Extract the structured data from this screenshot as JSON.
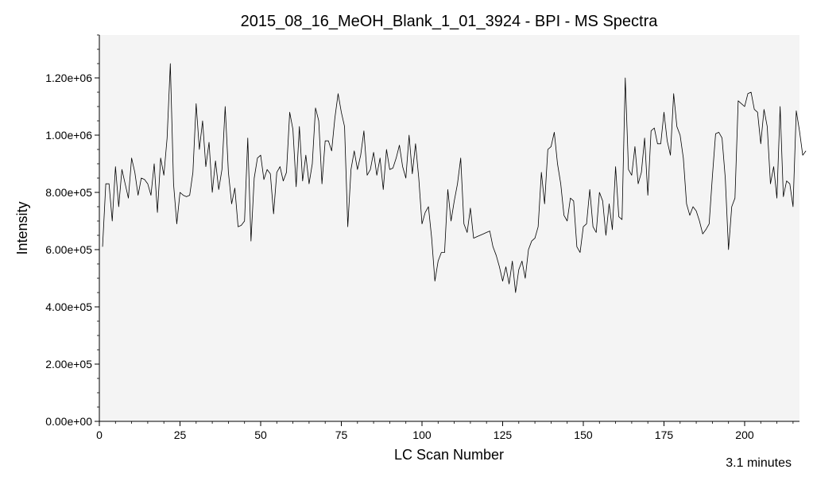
{
  "chart_data": {
    "type": "line",
    "title": "2015_08_16_MeOH_Blank_1_01_3924 - BPI - MS Spectra",
    "xlabel": "LC Scan Number",
    "ylabel": "Intensity",
    "xlim": [
      0,
      217
    ],
    "ylim": [
      0,
      1350000
    ],
    "x_ticks": [
      0,
      25,
      50,
      75,
      100,
      125,
      150,
      175,
      200
    ],
    "x_tick_labels": [
      "0",
      "25",
      "50",
      "75",
      "100",
      "125",
      "150",
      "175",
      "200"
    ],
    "y_ticks": [
      0,
      200000,
      400000,
      600000,
      800000,
      1000000,
      1200000
    ],
    "y_tick_labels": [
      "0.00e+00",
      "2.00e+05",
      "4.00e+05",
      "6.00e+05",
      "8.00e+05",
      "1.00e+06",
      "1.20e+06"
    ],
    "grid": false,
    "line_color": "#000000",
    "plot_background": "#f4f4f4",
    "series": [
      {
        "x_start": 1,
        "x_step": 1,
        "values": [
          610000,
          830000,
          830000,
          700000,
          890000,
          750000,
          880000,
          830000,
          780000,
          920000,
          870000,
          790000,
          850000,
          845000,
          830000,
          790000,
          900000,
          730000,
          920000,
          860000,
          990000,
          1250000,
          830000,
          690000,
          800000,
          790000,
          785000,
          790000,
          870000,
          1110000,
          950000,
          1050000,
          890000,
          975000,
          800000,
          910000,
          810000,
          880000,
          1100000,
          870000,
          760000,
          815000,
          680000,
          685000,
          700000,
          990000,
          630000,
          850000,
          920000,
          930000,
          845000,
          880000,
          865000,
          725000,
          870000,
          890000,
          840000,
          870000,
          1080000,
          1020000,
          820000,
          1030000,
          840000,
          930000,
          830000,
          900000,
          1095000,
          1050000,
          830000,
          980000,
          980000,
          945000,
          1060000,
          1145000,
          1080000,
          1030000,
          680000,
          880000,
          945000,
          880000,
          930000,
          1015000,
          860000,
          880000,
          940000,
          860000,
          920000,
          810000,
          950000,
          880000,
          885000,
          920000,
          965000,
          890000,
          850000,
          1000000,
          865000,
          970000,
          850000,
          690000,
          730000,
          750000,
          640000,
          490000,
          560000,
          590000,
          590000,
          810000,
          700000,
          770000,
          830000,
          920000,
          690000,
          660000,
          745000,
          640000,
          645000,
          650000,
          655000,
          660000,
          665000,
          610000,
          580000,
          540000,
          490000,
          540000,
          480000,
          560000,
          450000,
          530000,
          560000,
          500000,
          600000,
          630000,
          640000,
          680000,
          870000,
          760000,
          950000,
          960000,
          1010000,
          900000,
          830000,
          720000,
          700000,
          780000,
          770000,
          610000,
          590000,
          680000,
          690000,
          810000,
          680000,
          660000,
          800000,
          770000,
          650000,
          760000,
          670000,
          890000,
          715000,
          705000,
          1200000,
          880000,
          860000,
          960000,
          830000,
          870000,
          990000,
          790000,
          1015000,
          1025000,
          970000,
          970000,
          1080000,
          980000,
          930000,
          1145000,
          1030000,
          1000000,
          920000,
          760000,
          720000,
          750000,
          735000,
          700000,
          655000,
          670000,
          690000,
          855000,
          1005000,
          1010000,
          990000,
          850000,
          600000,
          750000,
          780000,
          1120000,
          1110000,
          1100000,
          1145000,
          1150000,
          1090000,
          1080000,
          970000,
          1090000,
          1030000,
          830000,
          890000,
          780000,
          1100000,
          785000,
          840000,
          830000,
          750000,
          1085000,
          1015000,
          930000,
          945000
        ]
      }
    ]
  },
  "footnote": "3.1 minutes"
}
